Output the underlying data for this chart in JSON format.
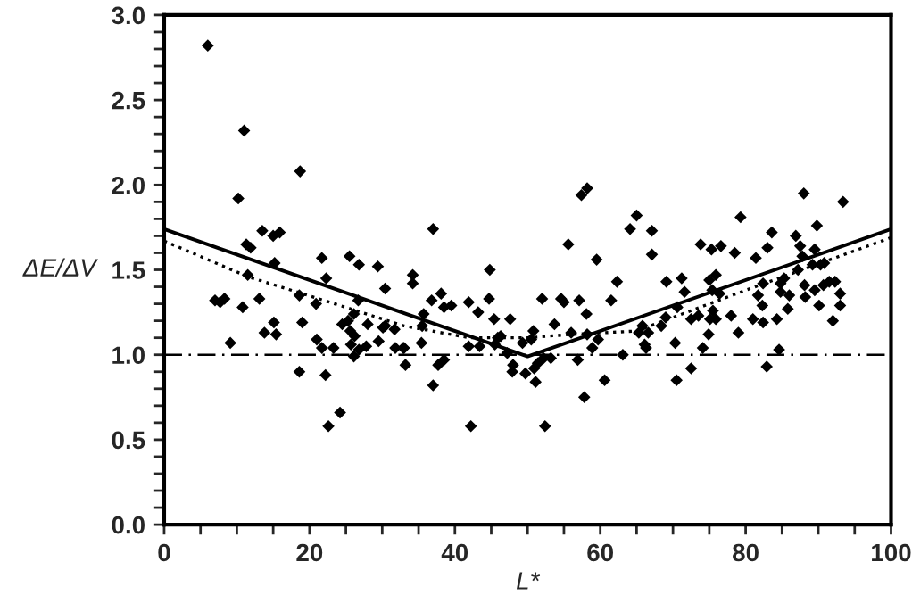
{
  "chart_data": {
    "type": "scatter",
    "xlabel": "L*",
    "ylabel": "ΔE/ΔV",
    "xlim": [
      0,
      100
    ],
    "ylim": [
      0,
      3.0
    ],
    "xticks": [
      0,
      {
        "value": 5,
        "label": null
      },
      {
        "value": 10,
        "label": null
      },
      {
        "value": 15,
        "label": null
      },
      20,
      {
        "value": 25,
        "label": null
      },
      {
        "value": 30,
        "label": null
      },
      {
        "value": 35,
        "label": null
      },
      40,
      {
        "value": 45,
        "label": null
      },
      {
        "value": 50,
        "label": null
      },
      {
        "value": 55,
        "label": null
      },
      60,
      {
        "value": 65,
        "label": null
      },
      {
        "value": 70,
        "label": null
      },
      {
        "value": 75,
        "label": null
      },
      80,
      {
        "value": 85,
        "label": null
      },
      {
        "value": 90,
        "label": null
      },
      {
        "value": 95,
        "label": null
      },
      100
    ],
    "yticks": [
      {
        "value": 0,
        "label": "0.0"
      },
      {
        "value": 0.1,
        "label": null
      },
      {
        "value": 0.2,
        "label": null
      },
      {
        "value": 0.3,
        "label": null
      },
      {
        "value": 0.4,
        "label": null
      },
      0.5,
      {
        "value": 0.6,
        "label": null
      },
      {
        "value": 0.7,
        "label": null
      },
      {
        "value": 0.8,
        "label": null
      },
      {
        "value": 0.9,
        "label": null
      },
      {
        "value": 1.0,
        "label": "1.0"
      },
      {
        "value": 1.1,
        "label": null
      },
      {
        "value": 1.2,
        "label": null
      },
      {
        "value": 1.3,
        "label": null
      },
      {
        "value": 1.4,
        "label": null
      },
      1.5,
      {
        "value": 1.6,
        "label": null
      },
      {
        "value": 1.7,
        "label": null
      },
      {
        "value": 1.8,
        "label": null
      },
      {
        "value": 1.9,
        "label": null
      },
      {
        "value": 2.0,
        "label": "2.0"
      },
      {
        "value": 2.1,
        "label": null
      },
      {
        "value": 2.2,
        "label": null
      },
      {
        "value": 2.3,
        "label": null
      },
      {
        "value": 2.4,
        "label": null
      },
      2.5,
      {
        "value": 2.6,
        "label": null
      },
      {
        "value": 2.7,
        "label": null
      },
      {
        "value": 2.8,
        "label": null
      },
      {
        "value": 2.9,
        "label": null
      },
      {
        "value": 3.0,
        "label": "3.0"
      }
    ],
    "grid": false,
    "legend": false,
    "ref_lines": [
      {
        "axis": "y",
        "value": 1.0,
        "label": null,
        "color": "#000000",
        "line_style": "dashdot"
      }
    ],
    "series": [
      {
        "color": "#000000",
        "marker": "diamond",
        "x": [
          6.0,
          11.0,
          18.7,
          10.2,
          13.5,
          15.0,
          15.9,
          11.3,
          11.9,
          15.2,
          11.5,
          21.7,
          22.3,
          25.5,
          26.8,
          29.4,
          30.4,
          7.0,
          7.7,
          8.3,
          10.8,
          13.1,
          18.6,
          19.0,
          20.9,
          13.8,
          15.4,
          15.1,
          9.1,
          21.0,
          21.7,
          23.3,
          24.5,
          25.3,
          26.1,
          25.6,
          26.2,
          25.7,
          26.1,
          26.8,
          27.8,
          28.0,
          26.7,
          29.5,
          30.1,
          30.4,
          31.7,
          31.8,
          33.0,
          33.2,
          18.6,
          22.2,
          24.2,
          22.6,
          37.0,
          34.2,
          34.2,
          36.8,
          38.1,
          38.5,
          39.5,
          41.9,
          44.8,
          44.7,
          43.2,
          45.4,
          47.6,
          35.7,
          35.5,
          35.4,
          32.9,
          37.7,
          38.5,
          37.0,
          41.9,
          43.4,
          45.5,
          45.9,
          46.3,
          47.2,
          47.9,
          48.0,
          49.3,
          49.7,
          50.8,
          50.5,
          51.1,
          50.9,
          51.4,
          52.2,
          53.2,
          42.2,
          52.4,
          52.0,
          53.7,
          54.6,
          55.0,
          55.6,
          56.0,
          57.1,
          56.9,
          57.4,
          58.2,
          58.1,
          57.8,
          58.2,
          59.5,
          59.7,
          58.9,
          60.6,
          61.5,
          62.3,
          63.1,
          64.1,
          65.0,
          65.3,
          67.1,
          67.1,
          69.1,
          71.2,
          71.6,
          70.6,
          69.0,
          68.4,
          65.8,
          66.6,
          66.1,
          66.3,
          70.3,
          70.5,
          72.5,
          72.5,
          73.5,
          74.1,
          74.9,
          75.1,
          75.9,
          75.5,
          75.0,
          75.9,
          75.4,
          76.4,
          73.8,
          75.3,
          76.6,
          78.5,
          79.3,
          78.0,
          79.0,
          81.0,
          82.4,
          82.3,
          81.7,
          82.4,
          81.4,
          83.0,
          83.6,
          84.3,
          84.8,
          84.8,
          85.3,
          86.0,
          85.8,
          84.6,
          82.9,
          86.9,
          87.5,
          88.0,
          89.8,
          87.2,
          87.8,
          88.1,
          88.2,
          89.2,
          89.5,
          90.3,
          90.8,
          90.7,
          90.1,
          91.5,
          92.3,
          92.0,
          93.0,
          93.0,
          93.4,
          89.5
        ],
        "values": [
          2.82,
          2.32,
          2.08,
          1.92,
          1.73,
          1.7,
          1.72,
          1.65,
          1.63,
          1.54,
          1.47,
          1.57,
          1.45,
          1.58,
          1.53,
          1.52,
          1.39,
          1.32,
          1.31,
          1.33,
          1.28,
          1.33,
          1.35,
          1.19,
          1.3,
          1.13,
          1.12,
          1.19,
          1.07,
          1.09,
          1.04,
          1.04,
          1.18,
          1.2,
          1.24,
          1.14,
          1.11,
          1.06,
          0.99,
          1.03,
          1.05,
          1.18,
          1.32,
          1.08,
          1.16,
          1.17,
          1.15,
          1.04,
          1.04,
          0.94,
          0.9,
          0.88,
          0.66,
          0.58,
          1.74,
          1.47,
          1.42,
          1.32,
          1.36,
          1.28,
          1.29,
          1.31,
          1.5,
          1.33,
          1.25,
          1.21,
          1.21,
          1.24,
          1.17,
          1.07,
          1.04,
          0.94,
          0.97,
          0.82,
          1.05,
          1.05,
          1.06,
          1.1,
          1.11,
          1.01,
          0.9,
          0.94,
          1.07,
          0.89,
          1.14,
          1.09,
          0.84,
          0.92,
          0.95,
          0.98,
          0.98,
          0.58,
          0.58,
          1.33,
          1.18,
          1.33,
          1.31,
          1.65,
          1.13,
          1.32,
          0.97,
          1.94,
          1.98,
          1.24,
          0.75,
          1.12,
          1.56,
          1.09,
          1.04,
          0.85,
          1.32,
          1.43,
          1.0,
          1.74,
          1.82,
          1.13,
          1.73,
          1.59,
          1.43,
          1.45,
          1.37,
          1.28,
          1.22,
          1.17,
          1.17,
          1.13,
          1.06,
          1.04,
          1.07,
          0.85,
          0.92,
          1.21,
          1.23,
          1.04,
          1.12,
          1.21,
          1.21,
          1.26,
          1.44,
          1.47,
          1.38,
          1.36,
          1.65,
          1.62,
          1.64,
          1.6,
          1.81,
          1.23,
          1.13,
          1.21,
          1.19,
          1.29,
          1.35,
          1.42,
          1.57,
          1.63,
          1.72,
          1.21,
          1.37,
          1.42,
          1.45,
          1.35,
          1.27,
          1.03,
          0.93,
          1.7,
          1.64,
          1.95,
          1.76,
          1.5,
          1.58,
          1.41,
          1.34,
          1.53,
          1.62,
          1.53,
          1.54,
          1.41,
          1.29,
          1.43,
          1.43,
          1.2,
          1.29,
          1.36,
          1.9,
          1.38
        ]
      },
      {
        "type": "line",
        "color": "#000000",
        "line_style": "solid",
        "marker": "none",
        "x": [
          0,
          50,
          100
        ],
        "values": [
          1.74,
          0.99,
          1.74
        ]
      },
      {
        "type": "line",
        "color": "#000000",
        "line_style": "dotted",
        "marker": "none",
        "x": [
          0,
          11.5,
          22,
          33,
          42,
          50,
          56,
          65,
          80,
          100
        ],
        "values": [
          1.67,
          1.46,
          1.32,
          1.17,
          1.1,
          1.1,
          1.12,
          1.14,
          1.38,
          1.69
        ]
      }
    ]
  }
}
